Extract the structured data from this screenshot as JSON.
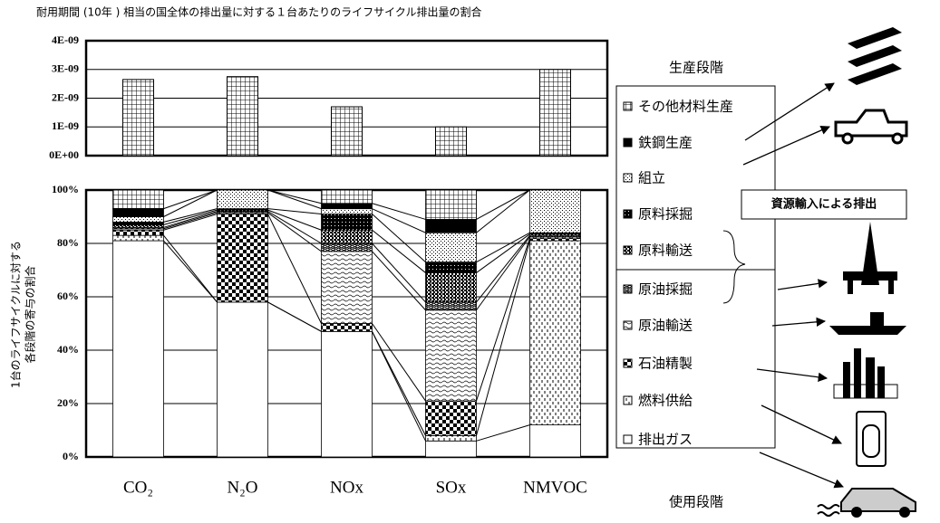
{
  "chart_data": [
    {
      "type": "bar",
      "title": "耐用期間 (10年 ) 相当の国全体の排出量に対する１台あたりのライフサイクル排出量の割合",
      "values": [
        2.65e-09,
        2.75e-09,
        1.7e-09,
        1e-09,
        3e-09
      ],
      "ylim": [
        0,
        4e-09
      ],
      "yticks": [
        {
          "value": 0,
          "label": "0E+00"
        },
        {
          "value": 1e-09,
          "label": "1E-09"
        },
        {
          "value": 2e-09,
          "label": "2E-09"
        },
        {
          "value": 3e-09,
          "label": "3E-09"
        },
        {
          "value": 4e-09,
          "label": "4E-09"
        }
      ],
      "grid": true
    },
    {
      "type": "stacked_bar",
      "categories": [
        "CO₂",
        "N₂O",
        "NOx",
        "SOx",
        "NMVOC"
      ],
      "y_label": [
        "1台のライフサイクルに対する",
        "各段階の寄与の割合"
      ],
      "ylim": [
        0,
        100
      ],
      "yticks": [
        {
          "value": 0,
          "label": "0%"
        },
        {
          "value": 20,
          "label": "20%"
        },
        {
          "value": 40,
          "label": "40%"
        },
        {
          "value": 60,
          "label": "60%"
        },
        {
          "value": 80,
          "label": "80%"
        },
        {
          "value": 100,
          "label": "100%"
        }
      ],
      "grid": true,
      "series": [
        {
          "name": "その他材料生産",
          "values": [
            7,
            0,
            5,
            11,
            0
          ]
        },
        {
          "name": "鉄鋼生産",
          "values": [
            3,
            0,
            2,
            5,
            0
          ]
        },
        {
          "name": "組立",
          "values": [
            2,
            7,
            2,
            11,
            16
          ]
        },
        {
          "name": "原料採掘",
          "values": [
            1,
            0.5,
            6,
            4,
            0.5
          ]
        },
        {
          "name": "原料輸送",
          "values": [
            1,
            0.5,
            5,
            11,
            0.5
          ]
        },
        {
          "name": "原油採掘",
          "values": [
            0.5,
            0.5,
            3,
            3,
            0.5
          ]
        },
        {
          "name": "原油輸送",
          "values": [
            0.5,
            0.5,
            27,
            34,
            0.5
          ]
        },
        {
          "name": "石油精製",
          "values": [
            2,
            33,
            3,
            13,
            1
          ]
        },
        {
          "name": "燃料供給",
          "values": [
            2,
            0,
            0,
            2,
            69
          ]
        },
        {
          "name": "排出ガス",
          "values": [
            81,
            58,
            47,
            6,
            12
          ]
        }
      ],
      "annotations": [
        "生産段階",
        "資源輸入による排出",
        "使用段階"
      ]
    }
  ]
}
